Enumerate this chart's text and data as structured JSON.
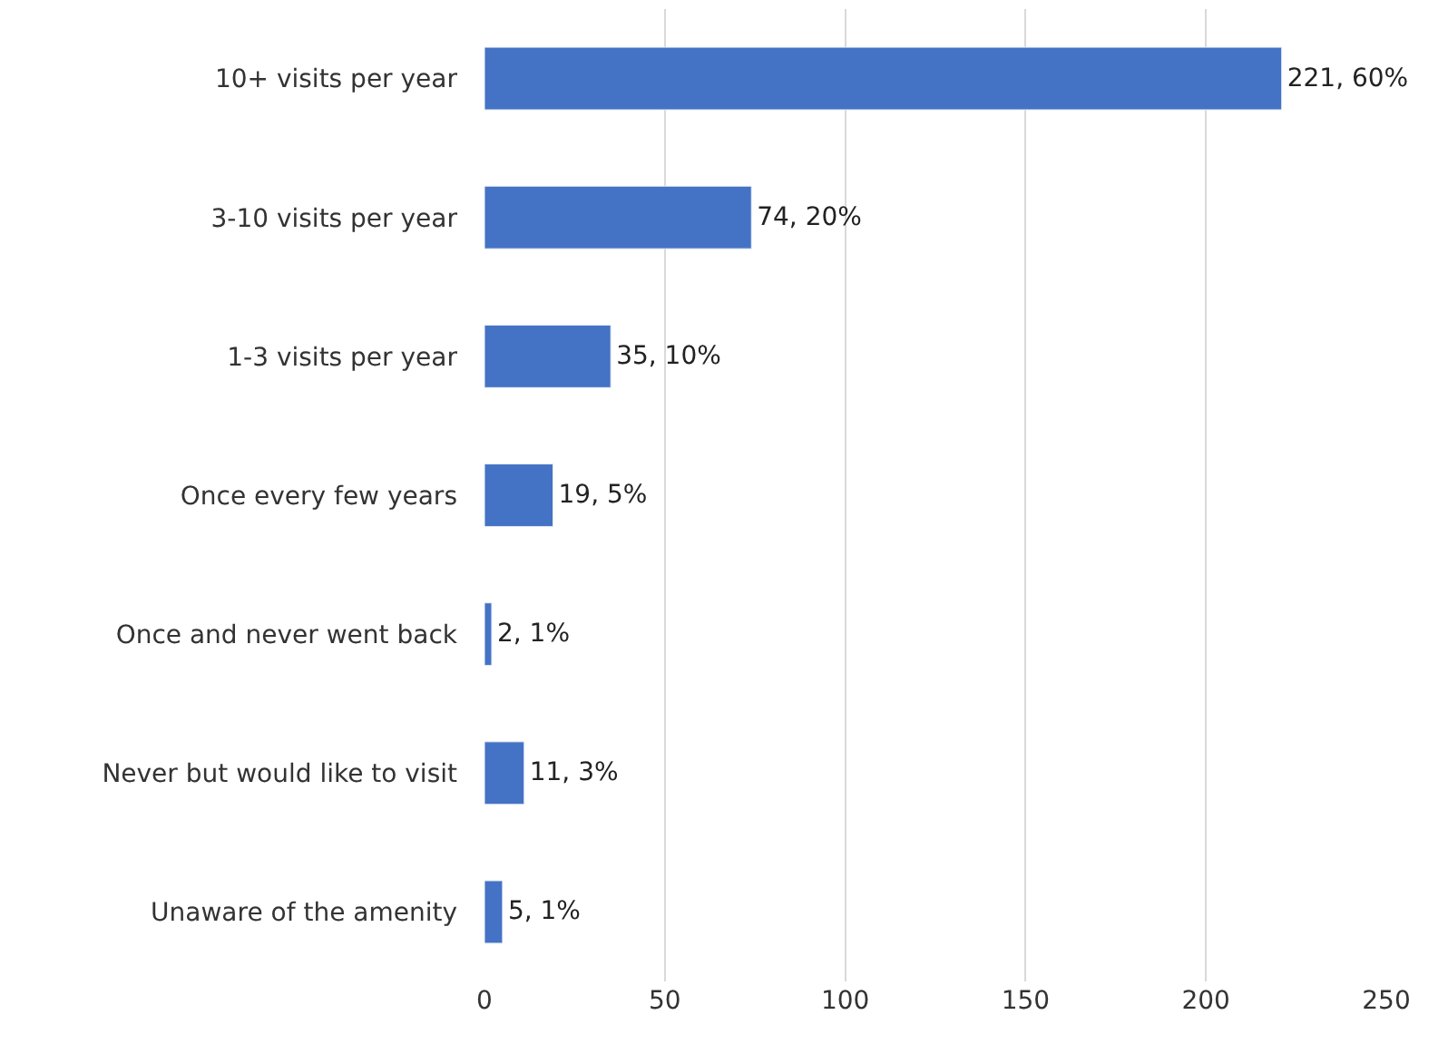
{
  "chart_data": {
    "type": "bar",
    "orientation": "horizontal",
    "categories": [
      "10+ visits per year",
      "3-10 visits per year",
      "1-3 visits per year",
      "Once every few years",
      "Once and never went back",
      "Never but would like to visit",
      "Unaware of the amenity"
    ],
    "values": [
      221,
      74,
      35,
      19,
      2,
      11,
      5
    ],
    "value_labels": [
      "221, 60%",
      "74, 20%",
      "35, 10%",
      "19, 5%",
      "2, 1%",
      "11, 3%",
      "5, 1%"
    ],
    "color": "#4472c4",
    "xlim": [
      0,
      250
    ],
    "xticks": [
      0,
      50,
      100,
      150,
      200,
      250
    ],
    "grid": "x",
    "legend": false
  }
}
